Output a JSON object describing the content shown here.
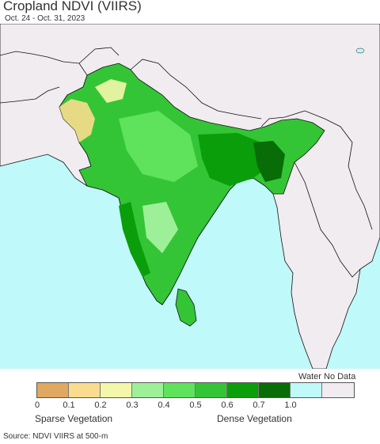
{
  "title": "Cropland NDVI (VIIRS)",
  "date_range": "Oct. 24 - Oct. 31, 2023",
  "legend": {
    "swatches": [
      {
        "label": "0",
        "color": "#e0a860"
      },
      {
        "label": "0.1",
        "color": "#f9dc8e"
      },
      {
        "label": "0.2",
        "color": "#f4f7aa"
      },
      {
        "label": "0.3",
        "color": "#9ef098"
      },
      {
        "label": "0.4",
        "color": "#5fe25c"
      },
      {
        "label": "0.5",
        "color": "#34c536"
      },
      {
        "label": "0.6",
        "color": "#0a9e0a"
      },
      {
        "label": "0.7",
        "color": "#086d06"
      },
      {
        "label": "1.0",
        "color": "#bff9f9"
      },
      {
        "label": "",
        "color": "#f0ecf0"
      }
    ],
    "water_label": "Water",
    "nodata_label": "No Data",
    "sparse_label": "Sparse Vegetation",
    "dense_label": "Dense Vegetation"
  },
  "source": "Source: NDVI VIIRS at 500-m",
  "colors": {
    "ocean": "#bff9f9",
    "land_background": "#f0ecf0",
    "border": "#111111"
  }
}
